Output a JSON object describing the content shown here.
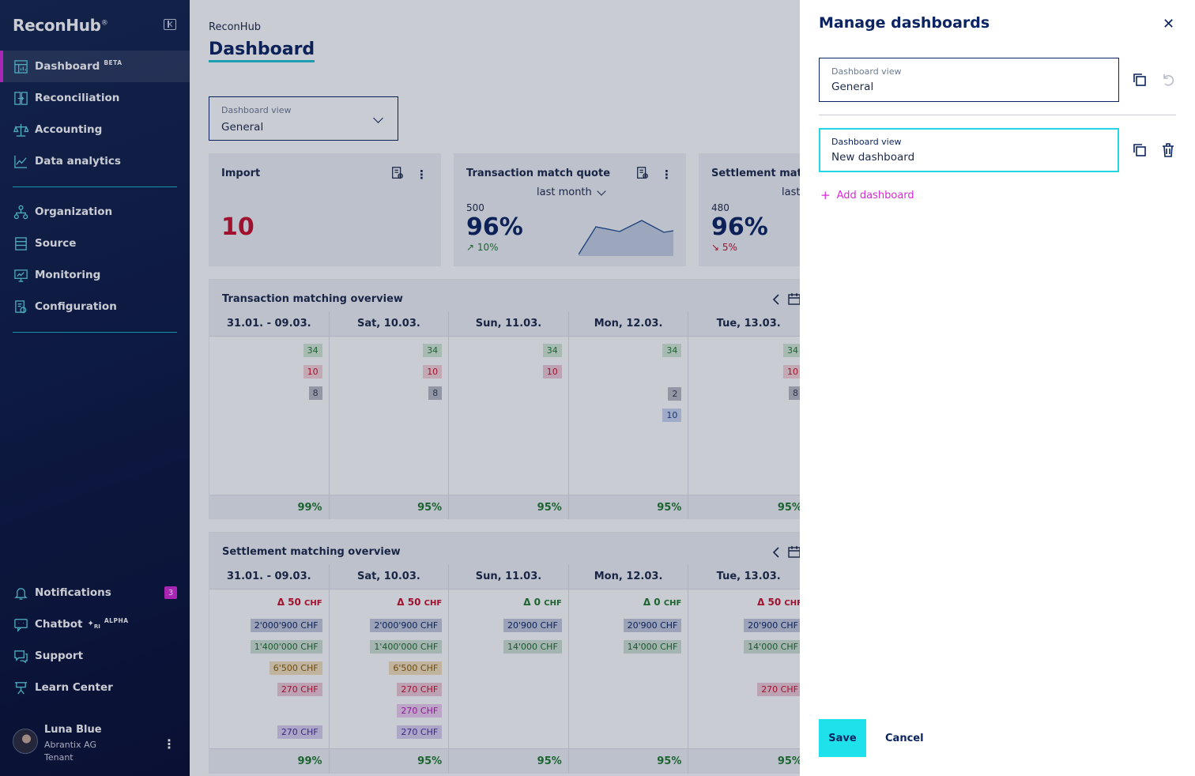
{
  "app": {
    "logo": "ReconHub",
    "logo_mark": "®"
  },
  "sidebar": {
    "items": [
      {
        "label": "Dashboard",
        "badge": "BETA"
      },
      {
        "label": "Reconciliation"
      },
      {
        "label": "Accounting"
      },
      {
        "label": "Data analytics"
      },
      {
        "label": "Organization"
      },
      {
        "label": "Source"
      },
      {
        "label": "Monitoring"
      },
      {
        "label": "Configuration"
      }
    ],
    "bottom": [
      {
        "label": "Notifications",
        "count": "3"
      },
      {
        "label": "Chatbot",
        "badge": "ALPHA"
      },
      {
        "label": "Support"
      },
      {
        "label": "Learn Center"
      }
    ],
    "user": {
      "name": "Luna Blue",
      "org": "Abrantix AG",
      "role": "Tenant"
    }
  },
  "main": {
    "breadcrumb": "ReconHub",
    "title": "Dashboard",
    "view_select": {
      "label": "Dashboard view",
      "value": "General"
    },
    "cards": [
      {
        "title": "Import",
        "value": "10"
      },
      {
        "title": "Transaction match quote",
        "period": "last month",
        "count": "500",
        "percent": "96%",
        "trend": "10%"
      },
      {
        "title": "Settlement match quote",
        "period": "last month",
        "count": "480",
        "percent": "96%",
        "trend": "5%"
      }
    ],
    "transaction_overview": {
      "title": "Transaction matching overview",
      "columns": [
        {
          "date": "31.01. - 09.03.",
          "chips": [
            "34",
            "10",
            "8"
          ],
          "total": "99%"
        },
        {
          "date": "Sat, 10.03.",
          "chips": [
            "34",
            "10",
            "8"
          ],
          "total": "95%"
        },
        {
          "date": "Sun, 11.03.",
          "chips": [
            "34",
            "10"
          ],
          "total": "95%"
        },
        {
          "date": "Mon, 12.03.",
          "chips": [
            "34",
            "2",
            "10"
          ],
          "total": "95%"
        },
        {
          "date": "Tue, 13.03.",
          "chips": [
            "34",
            "10",
            "8"
          ],
          "total": "95%"
        }
      ]
    },
    "settlement_overview": {
      "title": "Settlement matching overview",
      "columns": [
        {
          "date": "31.01. - 09.03.",
          "delta": "Δ 50",
          "delta_unit": "CHF",
          "amounts": [
            "2'000'900 CHF",
            "1'400'000 CHF",
            "6'500 CHF",
            "270 CHF",
            "270 CHF"
          ],
          "total": "99%"
        },
        {
          "date": "Sat, 10.03.",
          "delta": "Δ 50",
          "delta_unit": "CHF",
          "amounts": [
            "2'000'900 CHF",
            "1'400'000 CHF",
            "6'500 CHF",
            "270 CHF",
            "270 CHF",
            "270 CHF"
          ],
          "total": "95%"
        },
        {
          "date": "Sun, 11.03.",
          "delta": "Δ 0",
          "delta_unit": "CHF",
          "amounts": [
            "20'900 CHF",
            "14'000 CHF"
          ],
          "total": "95%"
        },
        {
          "date": "Mon, 12.03.",
          "delta": "Δ 0",
          "delta_unit": "CHF",
          "amounts": [
            "20'900 CHF",
            "14'000 CHF"
          ],
          "total": "95%"
        },
        {
          "date": "Tue, 13.03.",
          "delta": "Δ 50",
          "delta_unit": "CHF",
          "amounts": [
            "20'900 CHF",
            "14'000 CHF",
            "270 CHF"
          ],
          "total": "95%"
        }
      ]
    }
  },
  "drawer": {
    "title": "Manage dashboards",
    "fields": [
      {
        "label": "Dashboard view",
        "value": "General"
      },
      {
        "label": "Dashboard view",
        "value": "New dashboard"
      }
    ],
    "add_label": "Add dashboard",
    "save_label": "Save",
    "cancel_label": "Cancel"
  },
  "colors": {
    "accent_cyan": "#1fe1eb",
    "accent_magenta": "#d62ad6",
    "navy": "#0c2461",
    "danger": "#c8102e",
    "success": "#1f7a2e"
  }
}
